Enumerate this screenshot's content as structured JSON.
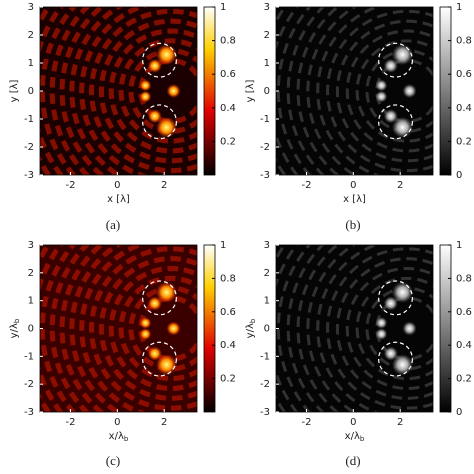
{
  "chart_data": [
    {
      "type": "heatmap",
      "caption": "(a)",
      "xlabel": {
        "text": "x [λ]"
      },
      "ylabel": {
        "text": "y [λ]"
      },
      "xlim": [
        -3.3,
        3.4
      ],
      "ylim": [
        -3,
        3
      ],
      "xticks": [
        -2,
        0,
        2
      ],
      "yticks": [
        -3,
        -2,
        -1,
        0,
        1,
        2,
        3
      ],
      "colormap": "hot",
      "clim": [
        0,
        1
      ],
      "cticks": [
        0.2,
        0.4,
        0.6,
        0.8,
        1
      ]
    },
    {
      "type": "heatmap",
      "caption": "(b)",
      "xlabel": {
        "text": "x [λ]"
      },
      "ylabel": {
        "text": "y [λ]"
      },
      "xlim": [
        -3.3,
        3.4
      ],
      "ylim": [
        -3,
        3
      ],
      "xticks": [
        -2,
        0,
        2
      ],
      "yticks": [
        -3,
        -2,
        -1,
        0,
        1,
        2,
        3
      ],
      "colormap": "gray",
      "clim": [
        0,
        1
      ],
      "cticks": [
        0,
        0.2,
        0.4,
        0.6,
        0.8,
        1
      ]
    },
    {
      "type": "heatmap",
      "caption": "(c)",
      "xlabel": {
        "text": "x/λ",
        "subscript": "b"
      },
      "ylabel": {
        "text": "y/λ",
        "subscript": "b"
      },
      "xlim": [
        -3.3,
        3.4
      ],
      "ylim": [
        -3,
        3
      ],
      "xticks": [
        -2,
        0,
        2
      ],
      "yticks": [
        -3,
        -2,
        -1,
        0,
        1,
        2,
        3
      ],
      "colormap": "hot",
      "clim": [
        0,
        1
      ],
      "cticks": [
        0.2,
        0.4,
        0.6,
        0.8,
        1
      ]
    },
    {
      "type": "heatmap",
      "caption": "(d)",
      "xlabel": {
        "text": "x/λ",
        "subscript": "b"
      },
      "ylabel": {
        "text": "y/λ",
        "subscript": "b"
      },
      "xlim": [
        -3.3,
        3.4
      ],
      "ylim": [
        -3,
        3
      ],
      "xticks": [
        -2,
        0,
        2
      ],
      "yticks": [
        -3,
        -2,
        -1,
        0,
        1,
        2,
        3
      ],
      "colormap": "gray",
      "clim": [
        0,
        1
      ],
      "cticks": [
        0,
        0.2,
        0.4,
        0.6,
        0.8,
        1
      ]
    }
  ]
}
